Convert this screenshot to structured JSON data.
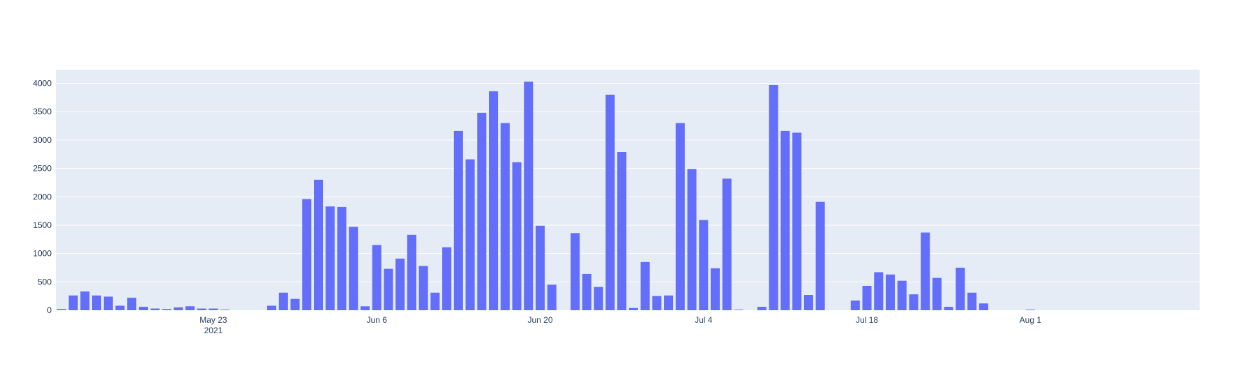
{
  "chart_data": {
    "type": "bar",
    "x_start": "2021-05-10",
    "x_step_days": 1,
    "values": [
      20,
      260,
      330,
      260,
      240,
      80,
      220,
      60,
      30,
      20,
      50,
      70,
      30,
      30,
      10,
      0,
      0,
      0,
      80,
      310,
      200,
      1960,
      2300,
      1830,
      1820,
      1470,
      70,
      1150,
      730,
      910,
      1330,
      780,
      310,
      1110,
      3160,
      2660,
      3480,
      3860,
      3300,
      2610,
      4030,
      1490,
      450,
      0,
      1360,
      640,
      410,
      3800,
      2790,
      40,
      850,
      250,
      260,
      3300,
      2490,
      1590,
      740,
      2320,
      10,
      0,
      60,
      3970,
      3160,
      3130,
      270,
      1910,
      0,
      0,
      170,
      430,
      670,
      630,
      520,
      280,
      1370,
      570,
      60,
      750,
      310,
      120,
      0,
      0,
      0,
      10,
      0,
      0,
      0,
      0,
      0,
      0,
      0,
      0,
      0,
      0,
      0,
      0,
      0,
      0
    ],
    "x_ticks": [
      {
        "date": "2021-05-23",
        "label": "May 23",
        "sublabel": "2021"
      },
      {
        "date": "2021-06-06",
        "label": "Jun 6",
        "sublabel": ""
      },
      {
        "date": "2021-06-20",
        "label": "Jun 20",
        "sublabel": ""
      },
      {
        "date": "2021-07-04",
        "label": "Jul 4",
        "sublabel": ""
      },
      {
        "date": "2021-07-18",
        "label": "Jul 18",
        "sublabel": ""
      },
      {
        "date": "2021-08-01",
        "label": "Aug 1",
        "sublabel": ""
      }
    ],
    "y_ticks": [
      0,
      500,
      1000,
      1500,
      2000,
      2500,
      3000,
      3500,
      4000
    ],
    "y_tick_labels": [
      "0",
      "500",
      "1000",
      "1500",
      "2000",
      "2500",
      "3000",
      "3500",
      "4000"
    ],
    "ylim": [
      0,
      4240
    ],
    "grid": true,
    "title": "",
    "xlabel": "",
    "ylabel": "",
    "colors": {
      "bar": "#636efa",
      "plot_background": "#e5ecf6",
      "grid": "#ffffff",
      "tick_text": "#2a3f5f"
    }
  }
}
